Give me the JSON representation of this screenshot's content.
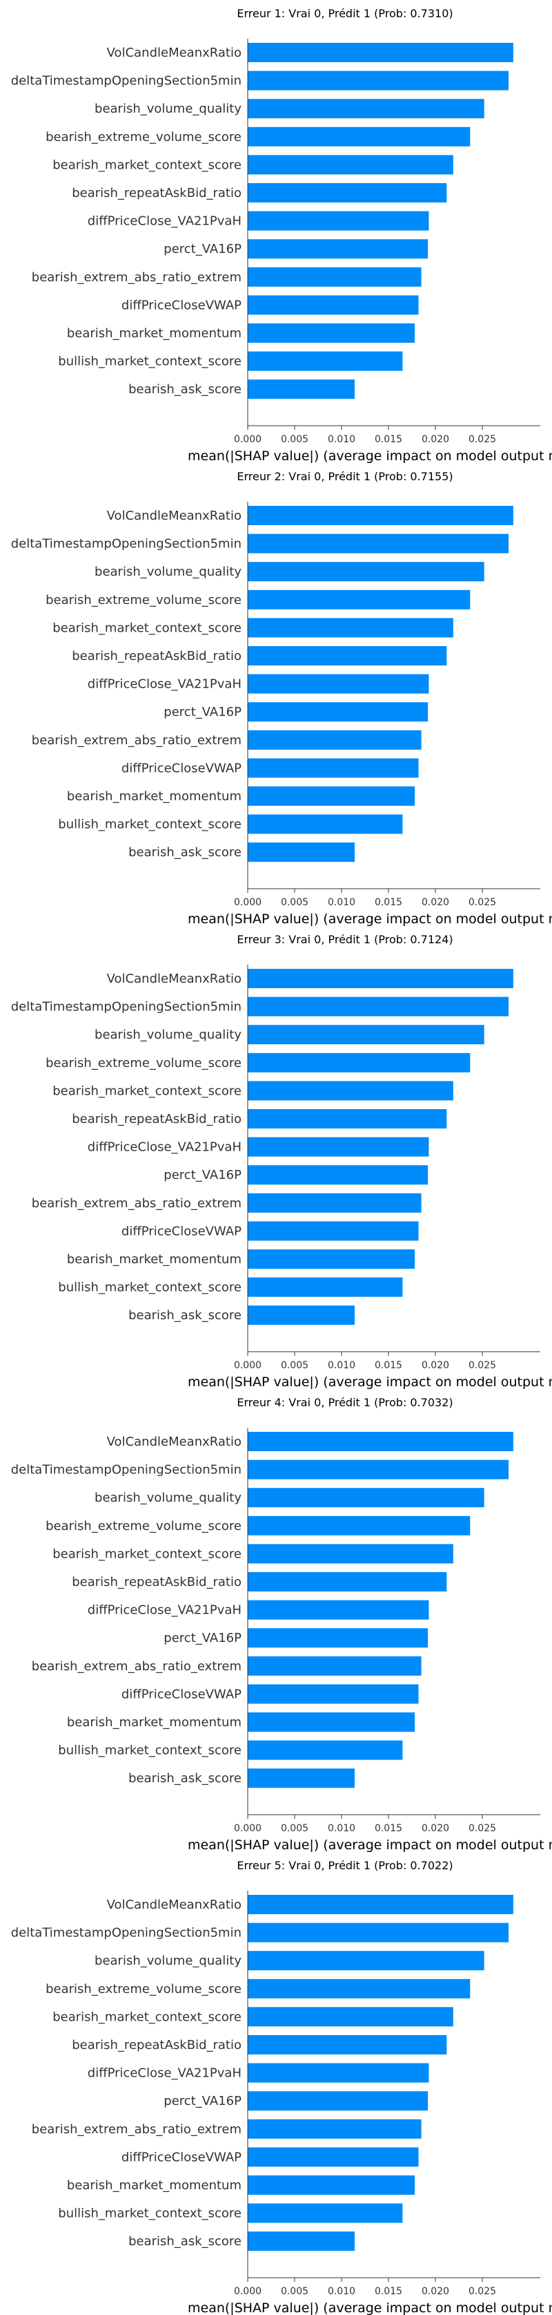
{
  "chart_data": [
    {
      "type": "bar",
      "orientation": "horizontal",
      "title": "Erreur 1: Vrai 0, Prédit 1 (Prob: 0.7310)",
      "xlabel": "mean(|SHAP value|) (average impact on model output magnitude)",
      "ylabel": "",
      "xlim": [
        0,
        0.03
      ],
      "xticks": [
        "0.000",
        "0.005",
        "0.010",
        "0.015",
        "0.020",
        "0.025"
      ],
      "grid": false,
      "bar_color": "#008bfb",
      "categories": [
        "VolCandleMeanxRatio",
        "deltaTimestampOpeningSection5min",
        "bearish_volume_quality",
        "bearish_extreme_volume_score",
        "bearish_market_context_score",
        "bearish_repeatAskBid_ratio",
        "diffPriceClose_VA21PvaH",
        "perct_VA16P",
        "bearish_extrem_abs_ratio_extrem",
        "diffPriceCloseVWAP",
        "bearish_market_momentum",
        "bullish_market_context_score",
        "bearish_ask_score"
      ],
      "values": [
        0.0283,
        0.0278,
        0.0252,
        0.0237,
        0.0219,
        0.0212,
        0.0193,
        0.0192,
        0.0185,
        0.0182,
        0.0178,
        0.0165,
        0.0114
      ]
    },
    {
      "type": "bar",
      "orientation": "horizontal",
      "title": "Erreur 2: Vrai 0, Prédit 1 (Prob: 0.7155)",
      "xlabel": "mean(|SHAP value|) (average impact on model output magnitude)",
      "ylabel": "",
      "xlim": [
        0,
        0.03
      ],
      "xticks": [
        "0.000",
        "0.005",
        "0.010",
        "0.015",
        "0.020",
        "0.025"
      ],
      "grid": false,
      "bar_color": "#008bfb",
      "categories": [
        "VolCandleMeanxRatio",
        "deltaTimestampOpeningSection5min",
        "bearish_volume_quality",
        "bearish_extreme_volume_score",
        "bearish_market_context_score",
        "bearish_repeatAskBid_ratio",
        "diffPriceClose_VA21PvaH",
        "perct_VA16P",
        "bearish_extrem_abs_ratio_extrem",
        "diffPriceCloseVWAP",
        "bearish_market_momentum",
        "bullish_market_context_score",
        "bearish_ask_score"
      ],
      "values": [
        0.0283,
        0.0278,
        0.0252,
        0.0237,
        0.0219,
        0.0212,
        0.0193,
        0.0192,
        0.0185,
        0.0182,
        0.0178,
        0.0165,
        0.0114
      ]
    },
    {
      "type": "bar",
      "orientation": "horizontal",
      "title": "Erreur 3: Vrai 0, Prédit 1 (Prob: 0.7124)",
      "xlabel": "mean(|SHAP value|) (average impact on model output magnitude)",
      "ylabel": "",
      "xlim": [
        0,
        0.03
      ],
      "xticks": [
        "0.000",
        "0.005",
        "0.010",
        "0.015",
        "0.020",
        "0.025"
      ],
      "grid": false,
      "bar_color": "#008bfb",
      "categories": [
        "VolCandleMeanxRatio",
        "deltaTimestampOpeningSection5min",
        "bearish_volume_quality",
        "bearish_extreme_volume_score",
        "bearish_market_context_score",
        "bearish_repeatAskBid_ratio",
        "diffPriceClose_VA21PvaH",
        "perct_VA16P",
        "bearish_extrem_abs_ratio_extrem",
        "diffPriceCloseVWAP",
        "bearish_market_momentum",
        "bullish_market_context_score",
        "bearish_ask_score"
      ],
      "values": [
        0.0283,
        0.0278,
        0.0252,
        0.0237,
        0.0219,
        0.0212,
        0.0193,
        0.0192,
        0.0185,
        0.0182,
        0.0178,
        0.0165,
        0.0114
      ]
    },
    {
      "type": "bar",
      "orientation": "horizontal",
      "title": "Erreur 4: Vrai 0, Prédit 1 (Prob: 0.7032)",
      "xlabel": "mean(|SHAP value|) (average impact on model output magnitude)",
      "ylabel": "",
      "xlim": [
        0,
        0.03
      ],
      "xticks": [
        "0.000",
        "0.005",
        "0.010",
        "0.015",
        "0.020",
        "0.025"
      ],
      "grid": false,
      "bar_color": "#008bfb",
      "categories": [
        "VolCandleMeanxRatio",
        "deltaTimestampOpeningSection5min",
        "bearish_volume_quality",
        "bearish_extreme_volume_score",
        "bearish_market_context_score",
        "bearish_repeatAskBid_ratio",
        "diffPriceClose_VA21PvaH",
        "perct_VA16P",
        "bearish_extrem_abs_ratio_extrem",
        "diffPriceCloseVWAP",
        "bearish_market_momentum",
        "bullish_market_context_score",
        "bearish_ask_score"
      ],
      "values": [
        0.0283,
        0.0278,
        0.0252,
        0.0237,
        0.0219,
        0.0212,
        0.0193,
        0.0192,
        0.0185,
        0.0182,
        0.0178,
        0.0165,
        0.0114
      ]
    },
    {
      "type": "bar",
      "orientation": "horizontal",
      "title": "Erreur 5: Vrai 0, Prédit 1 (Prob: 0.7022)",
      "xlabel": "mean(|SHAP value|) (average impact on model output magnitude)",
      "ylabel": "",
      "xlim": [
        0,
        0.03
      ],
      "xticks": [
        "0.000",
        "0.005",
        "0.010",
        "0.015",
        "0.020",
        "0.025"
      ],
      "grid": false,
      "bar_color": "#008bfb",
      "categories": [
        "VolCandleMeanxRatio",
        "deltaTimestampOpeningSection5min",
        "bearish_volume_quality",
        "bearish_extreme_volume_score",
        "bearish_market_context_score",
        "bearish_repeatAskBid_ratio",
        "diffPriceClose_VA21PvaH",
        "perct_VA16P",
        "bearish_extrem_abs_ratio_extrem",
        "diffPriceCloseVWAP",
        "bearish_market_momentum",
        "bullish_market_context_score",
        "bearish_ask_score"
      ],
      "values": [
        0.0283,
        0.0278,
        0.0252,
        0.0237,
        0.0219,
        0.0212,
        0.0193,
        0.0192,
        0.0185,
        0.0182,
        0.0178,
        0.0165,
        0.0114
      ]
    }
  ]
}
